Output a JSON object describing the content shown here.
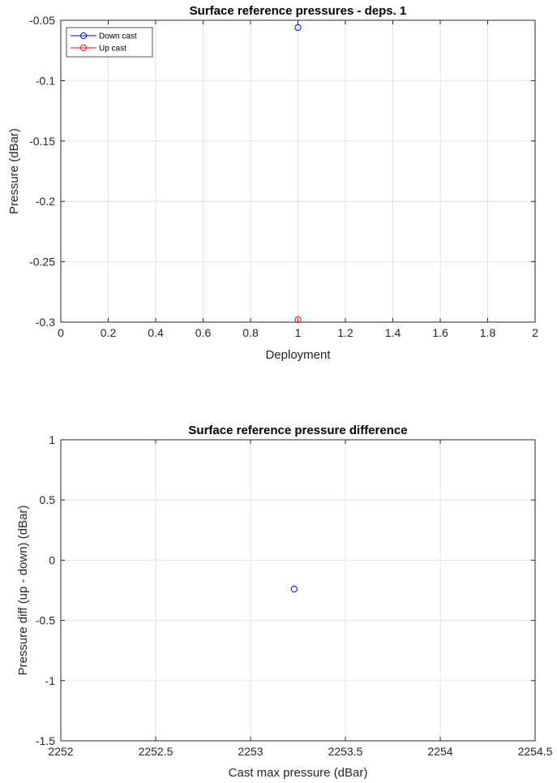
{
  "chart_data": [
    {
      "type": "scatter",
      "title": "Surface reference pressures - deps. 1",
      "xlabel": "Deployment",
      "ylabel": "Pressure (dBar)",
      "xlim": [
        0,
        2
      ],
      "ylim": [
        -0.3,
        -0.05
      ],
      "xticks": [
        "0",
        "0.2",
        "0.4",
        "0.6",
        "0.8",
        "1",
        "1.2",
        "1.4",
        "1.6",
        "1.8",
        "2"
      ],
      "yticks": [
        "-0.05",
        "-0.1",
        "-0.15",
        "-0.2",
        "-0.25",
        "-0.3"
      ],
      "grid": true,
      "legend_position": "top-left",
      "series": [
        {
          "name": "Down cast",
          "color": "#0000ff",
          "marker": "circle",
          "points": [
            {
              "x": 1,
              "y": -0.056
            }
          ]
        },
        {
          "name": "Up cast",
          "color": "#ff0000",
          "marker": "circle",
          "points": [
            {
              "x": 1,
              "y": -0.298
            }
          ]
        }
      ]
    },
    {
      "type": "scatter",
      "title": "Surface reference pressure difference",
      "xlabel": "Cast max pressure (dBar)",
      "ylabel": "Pressure diff (up - down) (dBar)",
      "xlim": [
        2252,
        2254.5
      ],
      "ylim": [
        -1.5,
        1
      ],
      "xticks": [
        "2252",
        "2252.5",
        "2253",
        "2253.5",
        "2254",
        "2254.5"
      ],
      "yticks": [
        "1",
        "0.5",
        "0",
        "-0.5",
        "-1",
        "-1.5"
      ],
      "grid": true,
      "series": [
        {
          "color": "#0000ff",
          "marker": "circle",
          "points": [
            {
              "x": 2253.23,
              "y": -0.24
            }
          ]
        }
      ]
    }
  ]
}
